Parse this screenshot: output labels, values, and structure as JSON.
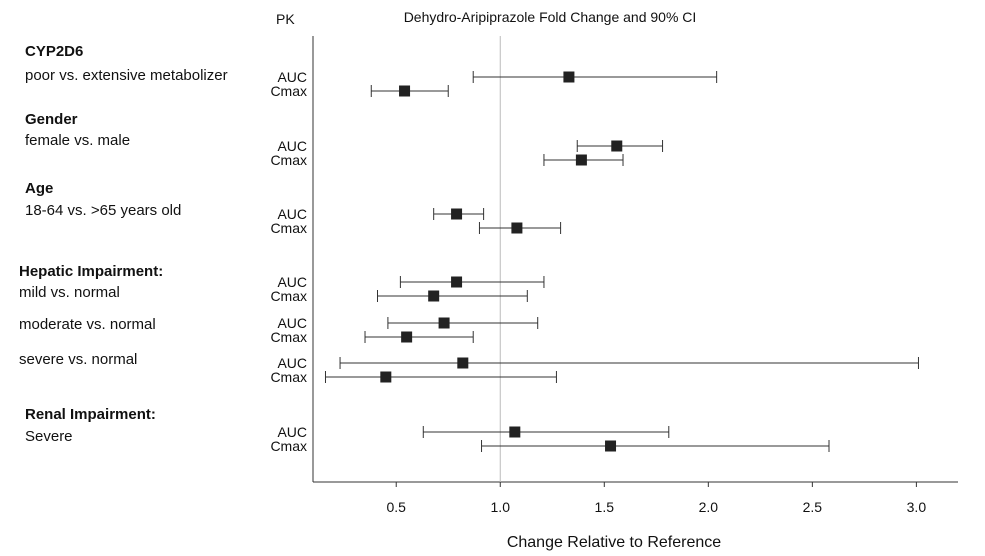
{
  "chart_data": {
    "type": "forest",
    "title": "Dehydro-Aripiprazole Fold Change and 90% CI",
    "column_header": "PK",
    "xlabel": "Change Relative to Reference",
    "xlim": [
      0.1,
      3.2
    ],
    "xticks": [
      0.5,
      1.0,
      1.5,
      2.0,
      2.5,
      3.0
    ],
    "xtick_labels": [
      "0.5",
      "1.0",
      "1.5",
      "2.0",
      "2.5",
      "3.0"
    ],
    "reference_line": 1.0,
    "groups": [
      {
        "title": "CYP2D6",
        "subtitle": "poor vs. extensive metabolizer",
        "rows": [
          {
            "param": "AUC",
            "estimate": 1.33,
            "lower": 0.87,
            "upper": 2.04
          },
          {
            "param": "Cmax",
            "estimate": 0.54,
            "lower": 0.38,
            "upper": 0.75
          }
        ]
      },
      {
        "title": "Gender",
        "subtitle": "female vs. male",
        "rows": [
          {
            "param": "AUC",
            "estimate": 1.56,
            "lower": 1.37,
            "upper": 1.78
          },
          {
            "param": "Cmax",
            "estimate": 1.39,
            "lower": 1.21,
            "upper": 1.59
          }
        ]
      },
      {
        "title": "Age",
        "subtitle": "18-64 vs. >65 years old",
        "rows": [
          {
            "param": "AUC",
            "estimate": 0.79,
            "lower": 0.68,
            "upper": 0.92
          },
          {
            "param": "Cmax",
            "estimate": 1.08,
            "lower": 0.9,
            "upper": 1.29
          }
        ]
      },
      {
        "title": "Hepatic Impairment:",
        "subtitle": "mild vs. normal",
        "rows": [
          {
            "param": "AUC",
            "estimate": 0.79,
            "lower": 0.52,
            "upper": 1.21
          },
          {
            "param": "Cmax",
            "estimate": 0.68,
            "lower": 0.41,
            "upper": 1.13
          }
        ]
      },
      {
        "title": "",
        "subtitle": "moderate vs. normal",
        "rows": [
          {
            "param": "AUC",
            "estimate": 0.73,
            "lower": 0.46,
            "upper": 1.18
          },
          {
            "param": "Cmax",
            "estimate": 0.55,
            "lower": 0.35,
            "upper": 0.87
          }
        ]
      },
      {
        "title": "",
        "subtitle": "severe vs. normal",
        "rows": [
          {
            "param": "AUC",
            "estimate": 0.82,
            "lower": 0.23,
            "upper": 3.01
          },
          {
            "param": "Cmax",
            "estimate": 0.45,
            "lower": 0.16,
            "upper": 1.27
          }
        ]
      },
      {
        "title": "Renal Impairment:",
        "subtitle": "Severe",
        "rows": [
          {
            "param": "AUC",
            "estimate": 1.07,
            "lower": 0.63,
            "upper": 1.81
          },
          {
            "param": "Cmax",
            "estimate": 1.53,
            "lower": 0.91,
            "upper": 2.58
          }
        ]
      }
    ],
    "grid": false,
    "legend": "none",
    "colors": {
      "marker": "#222222",
      "whisker": "#333333",
      "reference": "#bbbbbb",
      "axis": "#333333"
    }
  }
}
